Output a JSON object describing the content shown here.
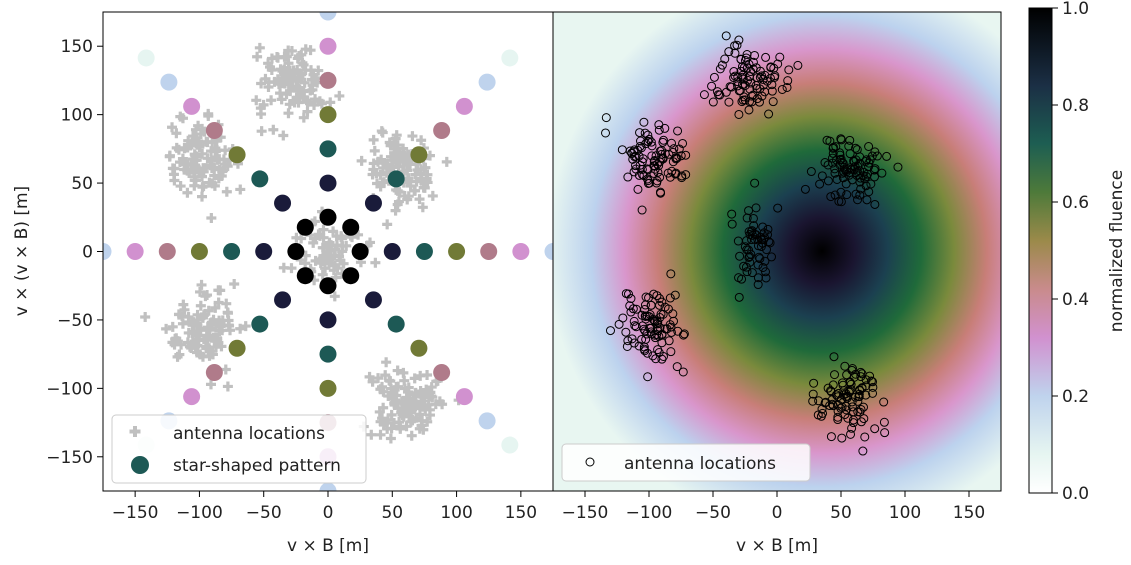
{
  "chart_data": [
    {
      "type": "scatter",
      "panel": "left",
      "xlabel": "v × B [m]",
      "ylabel": "v × (v × B) [m]",
      "xlim": [
        -175,
        175
      ],
      "ylim": [
        -175,
        175
      ],
      "xticks": [
        -150,
        -100,
        -50,
        0,
        50,
        100,
        150
      ],
      "yticks": [
        -150,
        -100,
        -50,
        0,
        50,
        100,
        150
      ],
      "legend": {
        "position": "lower-left",
        "entries": [
          "antenna locations",
          "star-shaped pattern"
        ]
      },
      "series": [
        {
          "name": "antenna locations",
          "marker": "plus",
          "color": "#c0c0c0",
          "clusters": [
            {
              "center": [
                0,
                0
              ]
            },
            {
              "center": [
                -27,
                125
              ]
            },
            {
              "center": [
                57,
                60
              ]
            },
            {
              "center": [
                -100,
                68
              ]
            },
            {
              "center": [
                -97,
                -57
              ]
            },
            {
              "center": [
                60,
                -108
              ]
            }
          ]
        },
        {
          "name": "star-shaped pattern",
          "marker": "circle",
          "arms_deg": [
            0,
            45,
            90,
            135,
            180,
            225,
            270,
            315
          ],
          "radii": [
            25,
            50,
            75,
            100,
            125,
            150,
            175,
            200
          ],
          "colors_by_ring": [
            "#000000",
            "#1a1b3a",
            "#1d5955",
            "#717a36",
            "#b07b8a",
            "#d191cf",
            "#bfd3ed",
            "#e6f5f1"
          ]
        }
      ]
    },
    {
      "type": "heatmap",
      "panel": "right",
      "xlabel": "v × B [m]",
      "xlim": [
        -175,
        175
      ],
      "ylim": [
        -175,
        175
      ],
      "xticks": [
        -150,
        -100,
        -50,
        0,
        50,
        100,
        150
      ],
      "colorbar": {
        "label": "normalized fluence",
        "ticks": [
          "0.0",
          "0.2",
          "0.4",
          "0.6",
          "0.8",
          "1.0"
        ],
        "colormap": "cubehelix_r"
      },
      "peak": [
        38,
        0
      ],
      "legend": {
        "position": "lower-left",
        "entries": [
          "antenna locations"
        ]
      },
      "series": [
        {
          "name": "antenna locations",
          "marker": "open-circle",
          "color": "#000000",
          "clusters": [
            {
              "center": [
                -18,
                3
              ]
            },
            {
              "center": [
                -22,
                125
              ]
            },
            {
              "center": [
                57,
                60
              ]
            },
            {
              "center": [
                -97,
                68
              ]
            },
            {
              "center": [
                -95,
                -57
              ]
            },
            {
              "center": [
                57,
                -108
              ]
            }
          ]
        }
      ]
    }
  ]
}
